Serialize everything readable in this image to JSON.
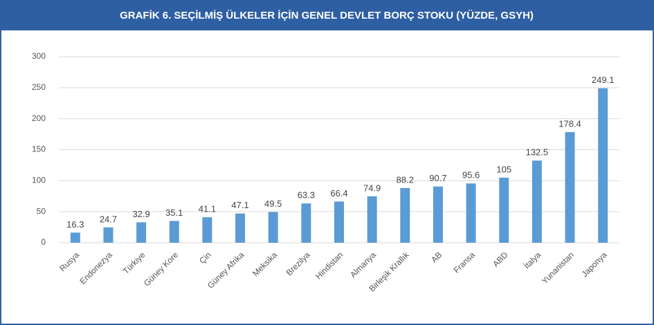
{
  "chart_data": {
    "type": "bar",
    "title": "GRAFİK 6. SEÇİLMİŞ ÜLKELER İÇİN GENEL DEVLET BORÇ STOKU (YÜZDE, GSYH)",
    "categories": [
      "Rusya",
      "Endonezya",
      "Türkiye",
      "Güney Kore",
      "Çin",
      "Güney Afrika",
      "Meksika",
      "Brezilya",
      "Hindistan",
      "Almanya",
      "Birleşik Krallık",
      "AB",
      "Fransa",
      "ABD",
      "İtalya",
      "Yunanistan",
      "Japonya"
    ],
    "values": [
      16.3,
      24.7,
      32.9,
      35.1,
      41.1,
      47.1,
      49.5,
      63.3,
      66.4,
      74.9,
      88.2,
      90.7,
      95.6,
      105,
      132.5,
      178.4,
      249.1
    ],
    "color": "#5b9bd5",
    "ylim": [
      0,
      300
    ],
    "yticks": [
      0,
      50,
      100,
      150,
      200,
      250,
      300
    ],
    "grid": true
  }
}
